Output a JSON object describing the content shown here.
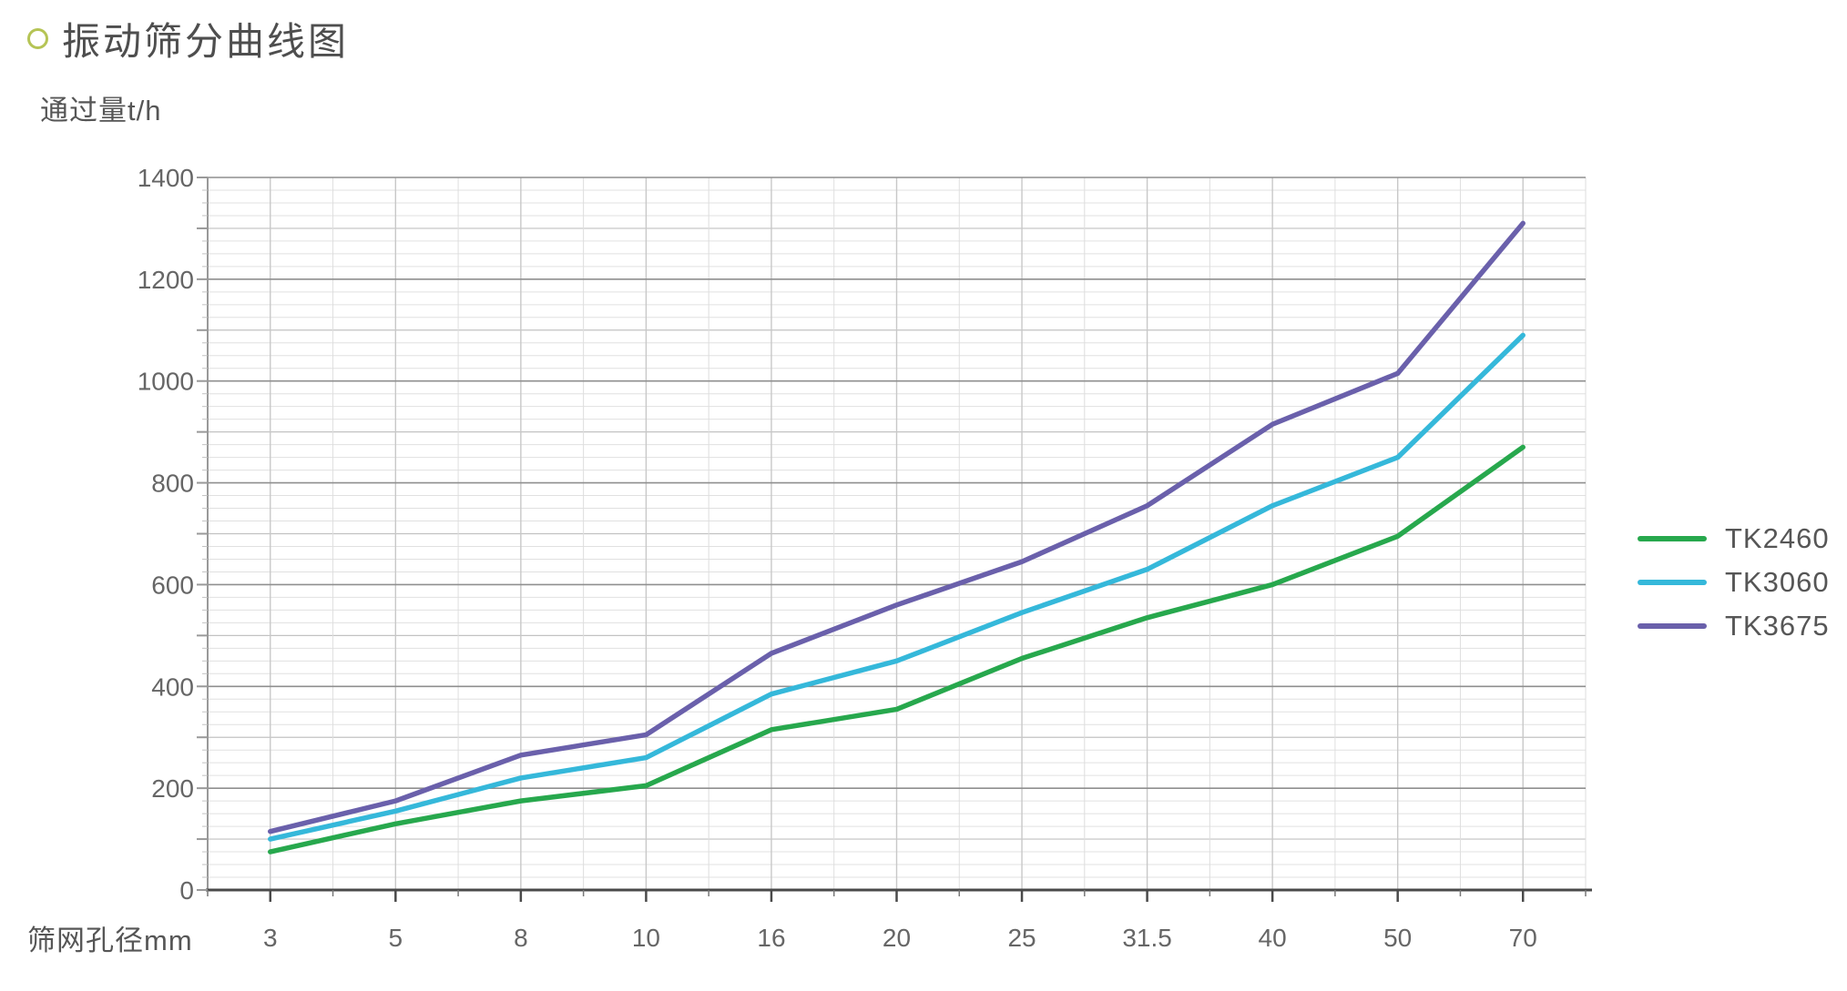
{
  "page": {
    "title": "振动筛分曲线图"
  },
  "axes": {
    "y_label": "通过量t/h",
    "x_label": "筛网孔径mm"
  },
  "legend": {
    "items": [
      {
        "label": "TK2460",
        "color": "#27a84d"
      },
      {
        "label": "TK3060",
        "color": "#35b8da"
      },
      {
        "label": "TK3675",
        "color": "#6a60ab"
      }
    ]
  },
  "colors": {
    "bullet": "#b5c455",
    "axis_line_bottom": "#4a4a4a",
    "axis_line_left": "#999999",
    "tick_text": "#666666",
    "grid_major": "#8f8f8f",
    "grid_medium": "#c2c2c2",
    "grid_minor": "#e0e0e0",
    "grid_vert_category": "#c8c8c8",
    "grid_vert_minor": "#dedede"
  },
  "chart_data": {
    "type": "line",
    "title": "振动筛分曲线图",
    "xlabel": "筛网孔径mm",
    "ylabel": "通过量t/h",
    "categories": [
      "3",
      "5",
      "8",
      "10",
      "16",
      "20",
      "25",
      "31.5",
      "40",
      "50",
      "70"
    ],
    "series": [
      {
        "name": "TK2460",
        "color": "#27a84d",
        "values": [
          75,
          130,
          175,
          205,
          315,
          355,
          455,
          535,
          600,
          695,
          870
        ]
      },
      {
        "name": "TK3060",
        "color": "#35b8da",
        "values": [
          100,
          155,
          220,
          260,
          385,
          450,
          545,
          630,
          755,
          850,
          1090
        ]
      },
      {
        "name": "TK3675",
        "color": "#6a60ab",
        "values": [
          115,
          175,
          265,
          305,
          465,
          560,
          645,
          755,
          915,
          1015,
          1310
        ]
      }
    ],
    "ylim": [
      0,
      1400
    ],
    "y_label_step": 200,
    "y_medium_step": 100,
    "y_minor_step": 25,
    "grid": true,
    "legend_position": "right"
  }
}
